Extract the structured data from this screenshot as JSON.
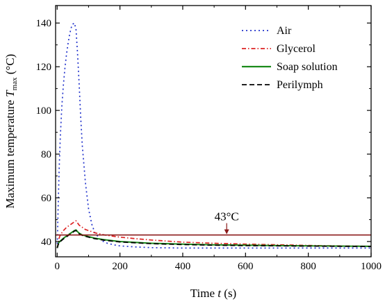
{
  "chart_data": {
    "type": "line",
    "xlabel": "Time t (s)",
    "xlabel_parts": {
      "prefix": "Time ",
      "var": "t",
      "suffix": " (s)"
    },
    "ylabel": "Maximum temperature T_max (°C)",
    "ylabel_parts": {
      "prefix": "Maximum temperature ",
      "var": "T",
      "sub": "max",
      "suffix": " (°C)"
    },
    "xlim": [
      -5,
      1000
    ],
    "ylim": [
      33,
      148
    ],
    "xticks": [
      0,
      200,
      400,
      600,
      800,
      1000
    ],
    "xtick_labels": [
      "0",
      "200",
      "400",
      "600",
      "800",
      "1000"
    ],
    "yticks": [
      40,
      60,
      80,
      100,
      120,
      140
    ],
    "ytick_labels": [
      "40",
      "60",
      "80",
      "100",
      "120",
      "140"
    ],
    "grid": false,
    "legend_position": "top-right",
    "threshold": {
      "value": 43,
      "label": "43°C",
      "label_x": 540,
      "color": "#8b1a1a"
    },
    "series": [
      {
        "name": "Air",
        "color": "#2233cc",
        "dash": "2,4",
        "x": [
          0,
          3,
          6,
          10,
          15,
          20,
          25,
          30,
          35,
          40,
          45,
          50,
          55,
          60,
          65,
          70,
          75,
          80,
          90,
          100,
          110,
          120,
          140,
          160,
          180,
          200,
          250,
          300,
          400,
          500,
          600,
          800,
          1000
        ],
        "y": [
          37,
          55,
          72,
          88,
          102,
          112,
          120,
          126,
          131,
          135,
          138,
          139.5,
          140,
          137,
          126,
          112,
          97,
          84,
          67,
          55,
          48,
          44,
          40.5,
          39.2,
          38.5,
          38,
          37.5,
          37.2,
          37,
          37,
          37,
          37,
          37
        ]
      },
      {
        "name": "Glycerol",
        "color": "#dd2222",
        "dash": "6,3,1.5,3",
        "x": [
          0,
          5,
          10,
          20,
          30,
          40,
          50,
          60,
          65,
          70,
          80,
          90,
          100,
          120,
          150,
          200,
          250,
          300,
          400,
          500,
          600,
          800,
          1000
        ],
        "y": [
          37,
          41,
          43,
          45,
          46.5,
          47.5,
          48.5,
          49.5,
          48.5,
          47.5,
          46.5,
          45.5,
          45,
          44,
          43,
          42,
          41.3,
          40.7,
          39.7,
          39.2,
          38.8,
          38.2,
          37.8
        ]
      },
      {
        "name": "Soap solution",
        "color": "#1a8a1a",
        "dash": "",
        "x": [
          0,
          5,
          10,
          20,
          30,
          40,
          50,
          55,
          60,
          65,
          70,
          80,
          100,
          120,
          150,
          200,
          300,
          400,
          500,
          600,
          800,
          1000
        ],
        "y": [
          37,
          39.5,
          40.2,
          41.5,
          42.5,
          43.5,
          44.5,
          45,
          45.3,
          44.5,
          43.8,
          43,
          42.2,
          41.5,
          40.8,
          40,
          39.2,
          38.8,
          38.5,
          38.3,
          38,
          37.8
        ]
      },
      {
        "name": "Perilymph",
        "color": "#000000",
        "dash": "7,4",
        "x": [
          0,
          5,
          10,
          20,
          30,
          40,
          50,
          55,
          60,
          65,
          70,
          80,
          100,
          120,
          150,
          200,
          300,
          400,
          500,
          600,
          800,
          1000
        ],
        "y": [
          37,
          39.3,
          40,
          41.2,
          42.2,
          43.2,
          44.2,
          44.8,
          45,
          44.2,
          43.5,
          42.8,
          42,
          41.3,
          40.6,
          39.8,
          39,
          38.6,
          38.3,
          38.1,
          37.9,
          37.7
        ]
      }
    ]
  }
}
